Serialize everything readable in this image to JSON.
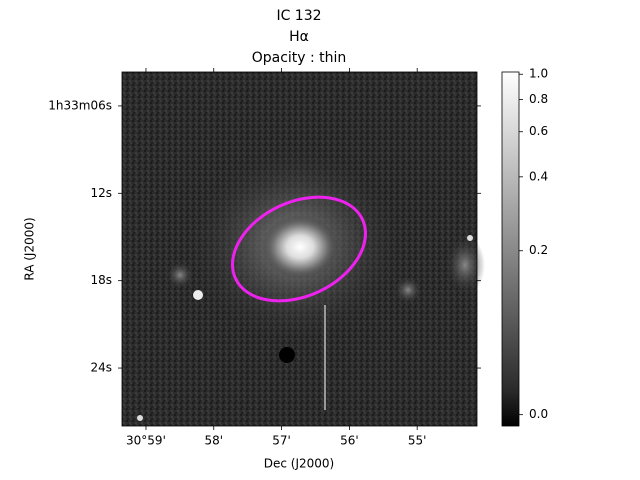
{
  "chart_data": {
    "type": "image",
    "title": [
      "IC 132",
      "Hα",
      "Opacity : thin"
    ],
    "x_label": "Dec (J2000)",
    "y_label": "RA (J2000)",
    "xlim": [
      30.98922,
      30.90197
    ],
    "xticks": [
      {
        "value": 30.98333,
        "label": "30°59'"
      },
      {
        "value": 30.96667,
        "label": "58'"
      },
      {
        "value": 30.95,
        "label": "57'"
      },
      {
        "value": 30.93333,
        "label": "56'"
      },
      {
        "value": 30.91667,
        "label": "55'"
      }
    ],
    "ylim": [
      3.67,
      27.98
    ],
    "yticks": [
      {
        "value": 6,
        "label": "1h33m06s"
      },
      {
        "value": 12,
        "label": "12s"
      },
      {
        "value": 18,
        "label": "18s"
      },
      {
        "value": 24,
        "label": "24s"
      }
    ],
    "colorbar": {
      "stretch": "asinh",
      "stretch_a": 0.1,
      "clim": [
        -0.01,
        1.02
      ],
      "ticks": [
        {
          "value": 0,
          "label": "0.0"
        },
        0.2,
        0.4,
        0.6,
        0.8,
        {
          "value": 1,
          "label": "1.0"
        }
      ]
    },
    "annotation_color": "#ee22ee"
  }
}
